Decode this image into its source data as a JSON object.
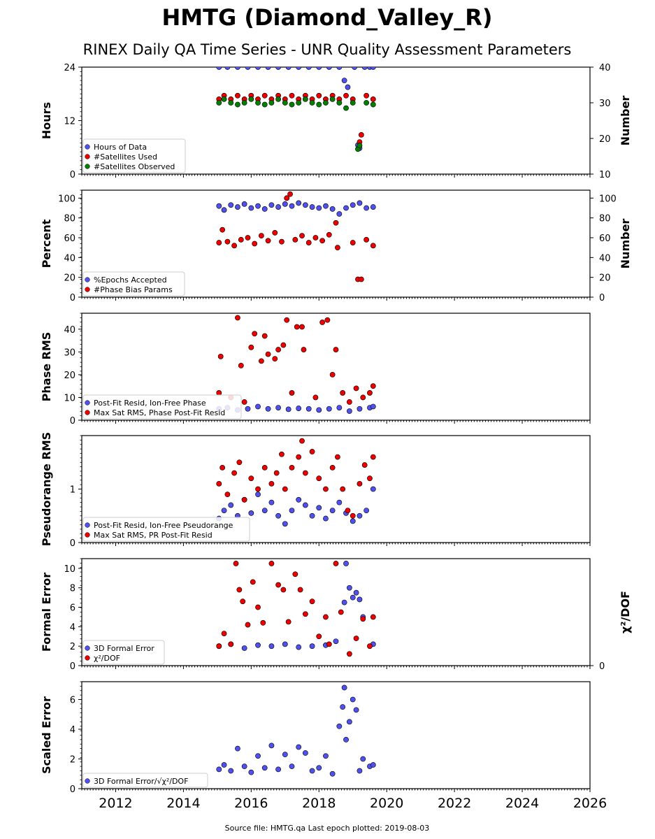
{
  "title": "HMTG (Diamond_Valley_R)",
  "subtitle": "RINEX Daily QA Time Series - UNR Quality Assessment Parameters",
  "footer": "Source file: HMTG.qa Last epoch plotted: 2019-08-03",
  "colors": {
    "blue": "#5050ee",
    "red": "#ee0000",
    "green": "#008000",
    "edge": "#000000"
  },
  "chart_data": [
    {
      "type": "scatter",
      "ylabel": "Hours",
      "ylabel_right": "Number",
      "ylim": [
        0,
        24
      ],
      "ylim_right": [
        10,
        40
      ],
      "yticks": [
        "0",
        "12",
        "24"
      ],
      "yticks_right": [
        "10",
        "20",
        "30",
        "40"
      ],
      "xlim": [
        2011,
        2026
      ],
      "grid": false,
      "legend_position": "lower-left",
      "series": [
        {
          "name": "Hours of Data",
          "color": "blue",
          "axis": "left",
          "x": [
            2015.05,
            2015.3,
            2015.6,
            2015.9,
            2016.2,
            2016.5,
            2016.8,
            2017.1,
            2017.4,
            2017.7,
            2018.0,
            2018.3,
            2018.6,
            2018.75,
            2018.85,
            2019.05,
            2019.15,
            2019.2,
            2019.35,
            2019.5,
            2019.6
          ],
          "y": [
            24,
            24,
            24,
            24,
            24,
            24,
            24,
            24,
            24,
            24,
            24,
            24,
            24,
            21,
            19.5,
            24,
            6.5,
            5.8,
            24,
            24,
            24
          ]
        },
        {
          "name": "#Satellites Used",
          "color": "red",
          "axis": "right",
          "x": [
            2015.05,
            2015.2,
            2015.4,
            2015.6,
            2015.8,
            2016.0,
            2016.2,
            2016.4,
            2016.6,
            2016.8,
            2017.0,
            2017.2,
            2017.4,
            2017.6,
            2017.8,
            2018.0,
            2018.2,
            2018.4,
            2018.6,
            2018.8,
            2019.0,
            2019.2,
            2019.25,
            2019.4,
            2019.6
          ],
          "y": [
            31,
            32,
            31,
            32,
            31,
            32,
            31,
            32,
            31,
            32,
            31,
            32,
            31,
            32,
            31,
            32,
            31,
            32,
            31,
            32,
            31,
            19,
            21,
            32,
            31
          ]
        },
        {
          "name": "#Satellites Observed",
          "color": "green",
          "axis": "right",
          "x": [
            2015.05,
            2015.2,
            2015.4,
            2015.6,
            2015.8,
            2016.0,
            2016.2,
            2016.4,
            2016.6,
            2016.8,
            2017.0,
            2017.2,
            2017.4,
            2017.6,
            2017.8,
            2018.0,
            2018.2,
            2018.4,
            2018.6,
            2018.8,
            2019.0,
            2019.15,
            2019.2,
            2019.4,
            2019.6
          ],
          "y": [
            30,
            31,
            30,
            29.5,
            30,
            31,
            30,
            29.5,
            30,
            31,
            30,
            29.5,
            30,
            31,
            30,
            29.5,
            30,
            31,
            30,
            28.5,
            30,
            17,
            18,
            30,
            29.5
          ]
        }
      ]
    },
    {
      "type": "scatter",
      "ylabel": "Percent",
      "ylabel_right": "Number",
      "ylim": [
        0,
        108
      ],
      "ylim_right": [
        0,
        108
      ],
      "yticks": [
        "0",
        "20",
        "40",
        "60",
        "80",
        "100"
      ],
      "yticks_right": [
        "0",
        "20",
        "40",
        "60",
        "80",
        "100"
      ],
      "xlim": [
        2011,
        2026
      ],
      "grid": false,
      "legend_position": "lower-left",
      "series": [
        {
          "name": "%Epochs Accepted",
          "color": "blue",
          "axis": "left",
          "x": [
            2015.05,
            2015.2,
            2015.4,
            2015.6,
            2015.8,
            2016.0,
            2016.2,
            2016.4,
            2016.6,
            2016.8,
            2017.0,
            2017.2,
            2017.4,
            2017.6,
            2017.8,
            2018.0,
            2018.2,
            2018.4,
            2018.6,
            2018.8,
            2019.0,
            2019.2,
            2019.4,
            2019.6
          ],
          "y": [
            92,
            88,
            93,
            91,
            94,
            90,
            92,
            89,
            93,
            91,
            94,
            92,
            95,
            93,
            91,
            90,
            92,
            89,
            84,
            90,
            93,
            95,
            90,
            91
          ]
        },
        {
          "name": "#Phase Bias Params",
          "color": "red",
          "axis": "right",
          "x": [
            2015.05,
            2015.15,
            2015.3,
            2015.5,
            2015.7,
            2015.9,
            2016.1,
            2016.3,
            2016.5,
            2016.7,
            2016.9,
            2017.05,
            2017.15,
            2017.3,
            2017.5,
            2017.7,
            2017.9,
            2018.1,
            2018.3,
            2018.5,
            2018.55,
            2019.0,
            2019.15,
            2019.25,
            2019.4,
            2019.6
          ],
          "y": [
            55,
            68,
            56,
            52,
            58,
            60,
            54,
            62,
            57,
            65,
            56,
            100,
            104,
            58,
            62,
            55,
            60,
            57,
            63,
            75,
            50,
            55,
            18,
            18,
            58,
            52
          ]
        }
      ]
    },
    {
      "type": "scatter",
      "ylabel": "Phase RMS",
      "ylim": [
        0,
        47
      ],
      "yticks": [
        "0",
        "10",
        "20",
        "30",
        "40"
      ],
      "xlim": [
        2011,
        2026
      ],
      "grid": false,
      "legend_position": "lower-left",
      "series": [
        {
          "name": "Post-Fit Resid, Ion-Free Phase",
          "color": "blue",
          "x": [
            2015.05,
            2015.3,
            2015.6,
            2015.9,
            2016.2,
            2016.5,
            2016.8,
            2017.1,
            2017.4,
            2017.7,
            2018.0,
            2018.3,
            2018.6,
            2018.9,
            2019.2,
            2019.5,
            2019.6
          ],
          "y": [
            5,
            5.5,
            4.5,
            5,
            6,
            5,
            5.5,
            4.8,
            5.2,
            5,
            4.5,
            5,
            5.5,
            4,
            5,
            5.5,
            6
          ]
        },
        {
          "name": "Max Sat RMS, Phase Post-Fit Resid",
          "color": "red",
          "x": [
            2015.05,
            2015.1,
            2015.4,
            2015.6,
            2015.7,
            2015.8,
            2016.0,
            2016.1,
            2016.3,
            2016.4,
            2016.5,
            2016.7,
            2016.8,
            2016.95,
            2017.05,
            2017.2,
            2017.35,
            2017.5,
            2017.55,
            2017.9,
            2018.1,
            2018.25,
            2018.4,
            2018.5,
            2018.7,
            2018.9,
            2019.1,
            2019.3,
            2019.5,
            2019.6
          ],
          "y": [
            12,
            28,
            10,
            45,
            24,
            8,
            32,
            38,
            26,
            37,
            29,
            27,
            31,
            33,
            44,
            12,
            41,
            41,
            31,
            10,
            43,
            44,
            20,
            31,
            12,
            8,
            14,
            10,
            12,
            15
          ]
        }
      ]
    },
    {
      "type": "scatter",
      "ylabel": "Pseudorange RMS",
      "ylim": [
        0,
        2
      ],
      "yticks": [
        "0",
        "1"
      ],
      "xlim": [
        2011,
        2026
      ],
      "grid": false,
      "legend_position": "lower-left",
      "series": [
        {
          "name": "Post-Fit Resid, Ion-Free Pseudorange",
          "color": "blue",
          "x": [
            2015.05,
            2015.2,
            2015.4,
            2015.6,
            2015.8,
            2016.0,
            2016.2,
            2016.4,
            2016.6,
            2016.8,
            2017.0,
            2017.2,
            2017.4,
            2017.6,
            2017.8,
            2018.0,
            2018.2,
            2018.4,
            2018.6,
            2018.8,
            2019.0,
            2019.2,
            2019.4,
            2019.6
          ],
          "y": [
            0.45,
            0.6,
            0.7,
            0.5,
            0.8,
            0.55,
            0.9,
            0.6,
            0.75,
            0.5,
            0.35,
            0.6,
            0.8,
            0.7,
            0.5,
            0.65,
            0.45,
            0.6,
            0.75,
            0.55,
            0.4,
            0.5,
            0.6,
            1.0
          ]
        },
        {
          "name": "Max Sat RMS, PR Post-Fit Resid",
          "color": "red",
          "x": [
            2015.05,
            2015.15,
            2015.3,
            2015.5,
            2015.65,
            2015.8,
            2016.0,
            2016.2,
            2016.4,
            2016.6,
            2016.75,
            2016.9,
            2017.0,
            2017.2,
            2017.4,
            2017.5,
            2017.6,
            2017.8,
            2018.0,
            2018.2,
            2018.4,
            2018.55,
            2018.7,
            2018.85,
            2019.0,
            2019.2,
            2019.35,
            2019.5,
            2019.6
          ],
          "y": [
            1.1,
            1.4,
            0.9,
            1.3,
            1.5,
            0.8,
            1.2,
            1.0,
            1.4,
            1.1,
            1.3,
            1.65,
            1.0,
            1.4,
            1.6,
            1.9,
            1.3,
            1.7,
            1.2,
            1.0,
            1.4,
            1.6,
            1.0,
            0.6,
            0.5,
            1.1,
            1.45,
            1.2,
            1.6
          ]
        }
      ]
    },
    {
      "type": "scatter",
      "ylabel": "Formal Error",
      "ylabel_right": "χ²/DOF",
      "ylim": [
        0,
        11
      ],
      "yticks": [
        "0",
        "2",
        "4",
        "6",
        "8",
        "10"
      ],
      "yticks_right": [
        "0"
      ],
      "xlim": [
        2011,
        2026
      ],
      "grid": false,
      "legend_position": "lower-left",
      "series": [
        {
          "name": "3D Formal Error",
          "color": "blue",
          "x": [
            2015.05,
            2015.4,
            2015.8,
            2016.2,
            2016.6,
            2017.0,
            2017.4,
            2017.8,
            2018.2,
            2018.5,
            2018.75,
            2018.8,
            2018.9,
            2019.0,
            2019.1,
            2019.2,
            2019.3,
            2019.6
          ],
          "y": [
            2,
            2.2,
            1.8,
            2.1,
            2,
            2.2,
            1.9,
            2,
            2.1,
            2.5,
            6.5,
            10.5,
            8,
            7,
            7.5,
            6.8,
            5,
            2.2
          ]
        },
        {
          "name": "χ²/DOF",
          "color": "red",
          "x": [
            2015.05,
            2015.2,
            2015.4,
            2015.55,
            2015.65,
            2015.75,
            2015.9,
            2016.05,
            2016.2,
            2016.35,
            2016.6,
            2016.8,
            2016.95,
            2017.1,
            2017.3,
            2017.45,
            2017.6,
            2017.8,
            2018.0,
            2018.2,
            2018.3,
            2018.5,
            2018.65,
            2018.9,
            2019.1,
            2019.3,
            2019.5,
            2019.6
          ],
          "y": [
            2,
            3.3,
            2.2,
            10.5,
            7.8,
            6.6,
            4.2,
            8.6,
            6.0,
            4.4,
            10.5,
            8.3,
            7.8,
            4.5,
            9.4,
            7.8,
            5.3,
            6.6,
            3.0,
            5.0,
            2.2,
            10.5,
            5.5,
            1.2,
            2.8,
            4.8,
            2.0,
            5.0
          ]
        }
      ]
    },
    {
      "type": "scatter",
      "ylabel": "Scaled Error",
      "ylim": [
        0,
        7.2
      ],
      "yticks": [
        "0",
        "2",
        "4",
        "6"
      ],
      "xticks": [
        "2012",
        "2014",
        "2016",
        "2018",
        "2020",
        "2022",
        "2024",
        "2026"
      ],
      "xlim": [
        2011,
        2026
      ],
      "grid": false,
      "legend_position": "lower-left",
      "series": [
        {
          "name": "3D Formal Error/√χ²/DOF",
          "color": "blue",
          "x": [
            2015.05,
            2015.2,
            2015.4,
            2015.6,
            2015.8,
            2016.0,
            2016.2,
            2016.4,
            2016.6,
            2016.8,
            2017.0,
            2017.2,
            2017.4,
            2017.6,
            2017.8,
            2018.0,
            2018.2,
            2018.4,
            2018.6,
            2018.7,
            2018.75,
            2018.8,
            2018.9,
            2019.0,
            2019.1,
            2019.2,
            2019.3,
            2019.5,
            2019.6
          ],
          "y": [
            1.3,
            1.6,
            1.2,
            2.7,
            1.5,
            1.1,
            2.2,
            1.4,
            2.9,
            1.3,
            2.3,
            1.5,
            2.8,
            2.4,
            1.2,
            1.4,
            2.2,
            1.0,
            4.2,
            5.5,
            6.8,
            3.3,
            4.5,
            6.0,
            5.3,
            1.2,
            2.0,
            1.5,
            1.6
          ]
        }
      ]
    }
  ]
}
